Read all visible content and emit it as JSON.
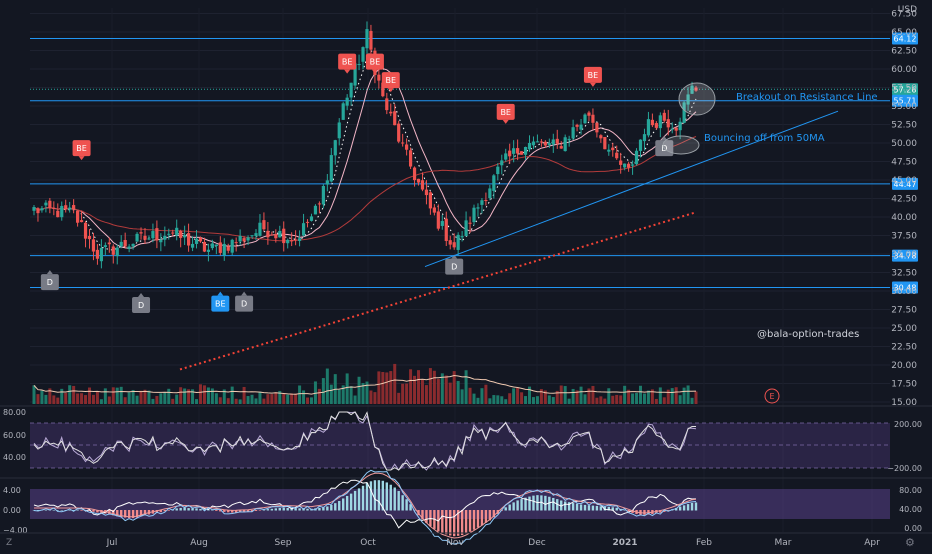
{
  "chart_data": [
    {
      "type": "candlestick",
      "currency": "USD",
      "y_ticks": [
        15.0,
        17.5,
        20.0,
        22.5,
        25.0,
        27.5,
        30.0,
        32.5,
        35.0,
        37.5,
        40.0,
        42.5,
        45.0,
        47.5,
        50.0,
        52.5,
        55.0,
        57.5,
        60.0,
        62.5,
        65.0,
        67.5
      ],
      "ylim": [
        15.0,
        67.5
      ],
      "x_ticks": [
        "Jul",
        "Aug",
        "Sep",
        "Oct",
        "Nov",
        "Dec",
        "2021",
        "Feb",
        "Mar",
        "Apr"
      ],
      "price_levels": [
        {
          "label": "64.12",
          "value": 64.12,
          "color": "#2196f3"
        },
        {
          "label": "57.26",
          "value": 57.26,
          "color": "#26a69a"
        },
        {
          "label": "55.71",
          "value": 55.71,
          "color": "#2196f3"
        },
        {
          "label": "44.47",
          "value": 44.47,
          "color": "#2196f3"
        },
        {
          "label": "34.78",
          "value": 34.78,
          "color": "#2196f3"
        },
        {
          "label": "30.48",
          "value": 30.48,
          "color": "#2196f3"
        }
      ],
      "annotations": {
        "breakout": "Breakout on Resistance Line",
        "bounce": "Bouncing off from 50MA",
        "watermark": "@bala-option-trades",
        "earnings": "E"
      },
      "markers": [
        {
          "label": "BE",
          "kind": "bearish",
          "date_index": 12,
          "price": 49.3
        },
        {
          "label": "D",
          "kind": "dividend",
          "date_index": 4,
          "price": 31.2
        },
        {
          "label": "D",
          "kind": "dividend",
          "date_index": 27,
          "price": 28.1
        },
        {
          "label": "BE",
          "kind": "bullish",
          "date_index": 47,
          "price": 28.3
        },
        {
          "label": "D",
          "kind": "dividend",
          "date_index": 53,
          "price": 28.3
        },
        {
          "label": "BE",
          "kind": "bearish",
          "date_index": 79,
          "price": 61.0
        },
        {
          "label": "BE",
          "kind": "bearish",
          "date_index": 86,
          "price": 61.0
        },
        {
          "label": "BE",
          "kind": "bearish",
          "date_index": 90,
          "price": 58.5
        },
        {
          "label": "D",
          "kind": "dividend",
          "date_index": 106,
          "price": 33.3
        },
        {
          "label": "BE",
          "kind": "bearish",
          "date_index": 119,
          "price": 54.2
        },
        {
          "label": "BE",
          "kind": "bearish",
          "date_index": 141,
          "price": 59.2
        },
        {
          "label": "D",
          "kind": "dividend",
          "date_index": 159,
          "price": 49.3
        }
      ],
      "ohlc_seed": {
        "start_close": 41.0,
        "anchors": [
          [
            0,
            41.0
          ],
          [
            10,
            40.5
          ],
          [
            16,
            35.0
          ],
          [
            24,
            36.5
          ],
          [
            34,
            38.0
          ],
          [
            44,
            35.5
          ],
          [
            50,
            36.5
          ],
          [
            58,
            38.5
          ],
          [
            66,
            37.0
          ],
          [
            72,
            41.5
          ],
          [
            78,
            55.0
          ],
          [
            84,
            64.5
          ],
          [
            88,
            56.0
          ],
          [
            94,
            48.0
          ],
          [
            100,
            41.0
          ],
          [
            106,
            36.0
          ],
          [
            112,
            41.5
          ],
          [
            118,
            47.0
          ],
          [
            124,
            50.0
          ],
          [
            132,
            49.5
          ],
          [
            140,
            54.0
          ],
          [
            146,
            48.0
          ],
          [
            150,
            46.0
          ],
          [
            154,
            52.0
          ],
          [
            158,
            53.5
          ],
          [
            162,
            52.5
          ],
          [
            166,
            57.3
          ]
        ]
      }
    },
    {
      "type": "line",
      "name": "rsi",
      "y_ticks_left": [
        "80.00",
        "60.00",
        "40.00"
      ],
      "y_ticks_right": [
        "200.00",
        "−200.00"
      ],
      "band": [
        30,
        70
      ]
    },
    {
      "type": "line",
      "name": "macd",
      "y_ticks_left": [
        "4.00",
        "0.00",
        "−4.00"
      ],
      "y_ticks_right": [
        "80.00",
        "40.00",
        "0.00"
      ]
    }
  ],
  "footer": {
    "z": "Z",
    "gear": "⚙"
  }
}
